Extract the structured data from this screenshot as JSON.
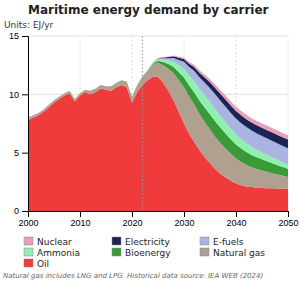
{
  "chart_data": {
    "type": "area",
    "stacked": true,
    "title": "Maritime energy demand by carrier",
    "y_label": "Units: EJ/yr",
    "annotations": [
      "Natural gas includes LNG and LPG. Historical data source: IEA WEB (2024)"
    ],
    "x": [
      2000,
      2001,
      2002,
      2003,
      2004,
      2005,
      2006,
      2007,
      2008,
      2009,
      2010,
      2011,
      2012,
      2013,
      2014,
      2015,
      2016,
      2017,
      2018,
      2019,
      2020,
      2021,
      2022,
      2023,
      2024,
      2025,
      2026,
      2027,
      2028,
      2029,
      2030,
      2031,
      2032,
      2033,
      2034,
      2035,
      2036,
      2037,
      2038,
      2039,
      2040,
      2041,
      2042,
      2043,
      2044,
      2045,
      2046,
      2047,
      2048,
      2049,
      2050
    ],
    "series": [
      {
        "name": "Oil",
        "color": "#ef3b3b",
        "values": [
          7.8,
          8.0,
          8.2,
          8.5,
          8.9,
          9.3,
          9.6,
          9.9,
          10.1,
          9.4,
          9.9,
          10.2,
          10.0,
          10.2,
          10.5,
          10.4,
          10.3,
          10.6,
          10.8,
          10.6,
          9.3,
          10.2,
          10.8,
          11.2,
          11.5,
          11.5,
          11.0,
          10.3,
          9.5,
          8.5,
          7.5,
          6.6,
          5.9,
          5.2,
          4.6,
          4.1,
          3.6,
          3.2,
          2.9,
          2.6,
          2.35,
          2.2,
          2.1,
          2.05,
          2.0,
          1.98,
          1.96,
          1.94,
          1.93,
          1.92,
          1.92
        ]
      },
      {
        "name": "Natural gas",
        "color": "#b0a090",
        "values": [
          0.2,
          0.2,
          0.2,
          0.2,
          0.2,
          0.2,
          0.2,
          0.2,
          0.2,
          0.2,
          0.2,
          0.2,
          0.3,
          0.3,
          0.3,
          0.3,
          0.4,
          0.4,
          0.4,
          0.5,
          0.5,
          0.6,
          0.7,
          0.8,
          1.0,
          1.2,
          1.5,
          1.9,
          2.3,
          2.7,
          3.1,
          3.2,
          3.2,
          3.1,
          3.0,
          2.9,
          2.75,
          2.6,
          2.45,
          2.3,
          2.15,
          2.0,
          1.85,
          1.7,
          1.6,
          1.5,
          1.4,
          1.3,
          1.2,
          1.1,
          1.0
        ]
      },
      {
        "name": "Bioenergy",
        "color": "#3a9a38",
        "values": [
          0.0,
          0.0,
          0.0,
          0.0,
          0.0,
          0.0,
          0.0,
          0.0,
          0.0,
          0.0,
          0.0,
          0.0,
          0.0,
          0.0,
          0.0,
          0.0,
          0.0,
          0.0,
          0.0,
          0.0,
          0.0,
          0.0,
          0.02,
          0.05,
          0.1,
          0.18,
          0.28,
          0.4,
          0.55,
          0.7,
          0.85,
          0.95,
          1.05,
          1.15,
          1.25,
          1.3,
          1.35,
          1.35,
          1.3,
          1.25,
          1.2,
          1.15,
          1.1,
          1.05,
          1.0,
          0.95,
          0.9,
          0.85,
          0.8,
          0.75,
          0.7
        ]
      },
      {
        "name": "Ammonia",
        "color": "#90f0b0",
        "values": [
          0.0,
          0.0,
          0.0,
          0.0,
          0.0,
          0.0,
          0.0,
          0.0,
          0.0,
          0.0,
          0.0,
          0.0,
          0.0,
          0.0,
          0.0,
          0.0,
          0.0,
          0.0,
          0.0,
          0.0,
          0.0,
          0.0,
          0.0,
          0.02,
          0.06,
          0.12,
          0.2,
          0.3,
          0.45,
          0.6,
          0.75,
          0.85,
          0.95,
          1.0,
          1.05,
          1.05,
          1.05,
          1.0,
          0.95,
          0.9,
          0.85,
          0.8,
          0.75,
          0.7,
          0.65,
          0.6,
          0.55,
          0.5,
          0.45,
          0.4,
          0.35
        ]
      },
      {
        "name": "E-fuels",
        "color": "#aab4e0",
        "values": [
          0.0,
          0.0,
          0.0,
          0.0,
          0.0,
          0.0,
          0.0,
          0.0,
          0.0,
          0.0,
          0.0,
          0.0,
          0.0,
          0.0,
          0.0,
          0.0,
          0.0,
          0.0,
          0.0,
          0.0,
          0.0,
          0.0,
          0.0,
          0.0,
          0.03,
          0.07,
          0.12,
          0.2,
          0.32,
          0.45,
          0.6,
          0.75,
          0.9,
          1.0,
          1.1,
          1.18,
          1.25,
          1.3,
          1.33,
          1.35,
          1.37,
          1.38,
          1.39,
          1.4,
          1.4,
          1.4,
          1.4,
          1.4,
          1.4,
          1.4,
          1.4
        ]
      },
      {
        "name": "Electricity",
        "color": "#1a2555",
        "values": [
          0.0,
          0.0,
          0.0,
          0.0,
          0.0,
          0.0,
          0.0,
          0.0,
          0.0,
          0.0,
          0.0,
          0.0,
          0.0,
          0.0,
          0.0,
          0.0,
          0.0,
          0.0,
          0.0,
          0.0,
          0.0,
          0.0,
          0.0,
          0.0,
          0.01,
          0.03,
          0.06,
          0.1,
          0.14,
          0.18,
          0.22,
          0.27,
          0.33,
          0.38,
          0.44,
          0.5,
          0.55,
          0.59,
          0.62,
          0.64,
          0.66,
          0.67,
          0.68,
          0.69,
          0.7,
          0.71,
          0.72,
          0.73,
          0.74,
          0.75,
          0.76
        ]
      },
      {
        "name": "Nuclear",
        "color": "#e8a0b8",
        "values": [
          0.0,
          0.0,
          0.0,
          0.0,
          0.0,
          0.0,
          0.0,
          0.0,
          0.0,
          0.0,
          0.0,
          0.0,
          0.0,
          0.0,
          0.0,
          0.0,
          0.0,
          0.0,
          0.0,
          0.0,
          0.0,
          0.0,
          0.0,
          0.0,
          0.0,
          0.01,
          0.02,
          0.04,
          0.06,
          0.09,
          0.12,
          0.15,
          0.18,
          0.21,
          0.24,
          0.27,
          0.3,
          0.32,
          0.34,
          0.35,
          0.36,
          0.37,
          0.37,
          0.37,
          0.37,
          0.37,
          0.37,
          0.37,
          0.37,
          0.37,
          0.37
        ]
      }
    ],
    "vlines": [
      2022
    ],
    "xlim": [
      2000,
      2050
    ],
    "ylim": [
      0,
      15
    ],
    "xticks": [
      2000,
      2010,
      2020,
      2030,
      2040,
      2050
    ],
    "yticks": [
      0,
      5,
      10,
      15
    ],
    "grid": true,
    "legend": "bottom"
  }
}
